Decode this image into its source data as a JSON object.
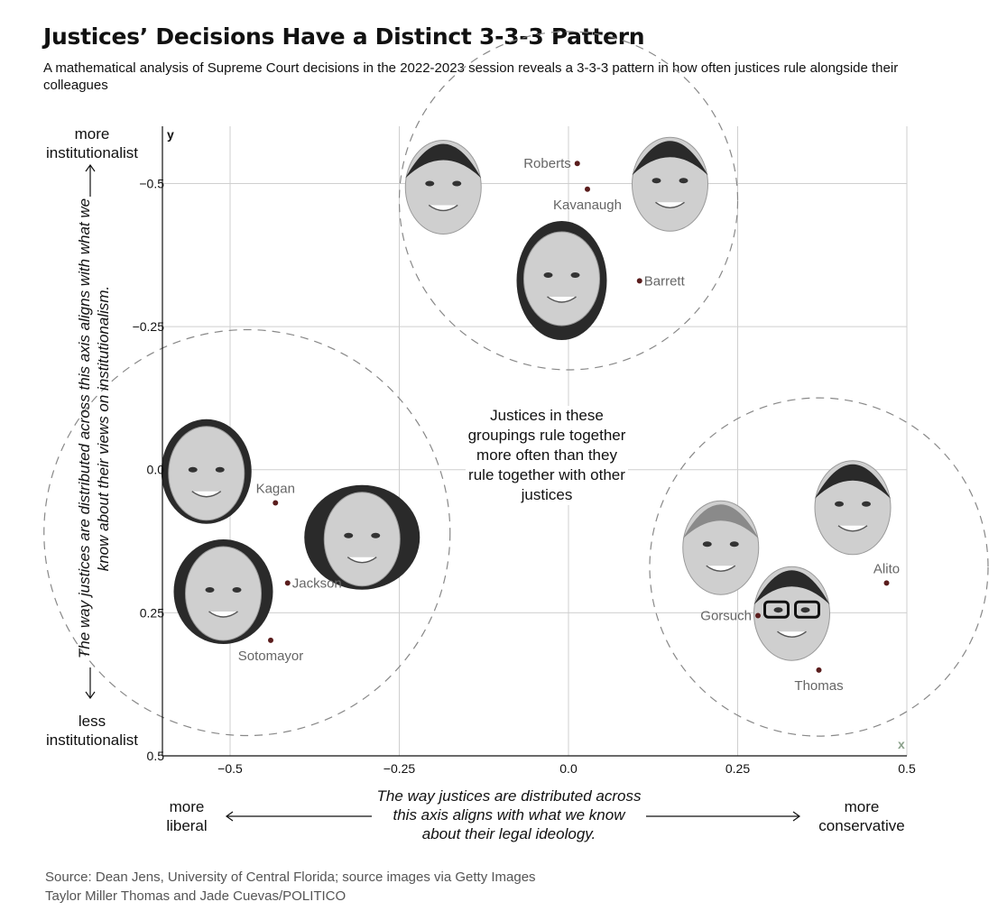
{
  "header": {
    "title": "Justices’ Decisions Have a Distinct 3-3-3 Pattern",
    "subtitle": "A mathematical analysis of Supreme Court decisions in the 2022-2023 session reveals a 3-3-3 pattern in how often justices rule alongside their colleagues"
  },
  "corners": {
    "top_left": "more\ninstitutionalist",
    "bottom_left": "less\ninstitutionalist",
    "left": "more\nliberal",
    "right": "more\nconservative"
  },
  "annotation": "Justices in these groupings rule together more often than they rule together with other justices",
  "footer": {
    "source": "Source: Dean Jens, University of Central Florida; source images via Getty Images",
    "credit": "Taylor Miller Thomas and Jade Cuevas/POLITICO"
  },
  "colors": {
    "point": "#5a1d1d",
    "label": "#666666",
    "grid": "#cfcfcf",
    "group_circle": "#888888",
    "face": "#cfcfcf",
    "hair": "#2a2a2a"
  },
  "chart_data": {
    "type": "scatter",
    "xlabel": "The way justices are distributed across this axis aligns with what we know about their legal ideology.",
    "ylabel": "The way justices are distributed across this axis aligns with what we know about their views on institutionalism.",
    "x_axis_letter": "x",
    "y_axis_letter": "y",
    "xlim": [
      -0.6,
      0.5
    ],
    "ylim": [
      -0.6,
      0.5
    ],
    "y_inverted": true,
    "x_ticks": [
      -0.5,
      -0.25,
      0.0,
      0.25,
      0.5
    ],
    "x_tick_labels": [
      "−0.5",
      "−0.25",
      "0.0",
      "0.25",
      "0.5"
    ],
    "y_ticks": [
      -0.5,
      -0.25,
      0.0,
      0.25,
      0.5
    ],
    "y_tick_labels": [
      "−0.5",
      "−0.25",
      "0.0",
      "0.25",
      "0.5"
    ],
    "grid": true,
    "points": [
      {
        "name": "Roberts",
        "x": 0.013,
        "y": -0.535,
        "label_side": "left"
      },
      {
        "name": "Kavanaugh",
        "x": 0.028,
        "y": -0.49,
        "label_side": "below"
      },
      {
        "name": "Barrett",
        "x": 0.105,
        "y": -0.33,
        "label_side": "right"
      },
      {
        "name": "Kagan",
        "x": -0.433,
        "y": 0.058,
        "label_side": "above"
      },
      {
        "name": "Jackson",
        "x": -0.415,
        "y": 0.198,
        "label_side": "right"
      },
      {
        "name": "Sotomayor",
        "x": -0.44,
        "y": 0.298,
        "label_side": "below"
      },
      {
        "name": "Gorsuch",
        "x": 0.28,
        "y": 0.255,
        "label_side": "left"
      },
      {
        "name": "Alito",
        "x": 0.47,
        "y": 0.198,
        "label_side": "above"
      },
      {
        "name": "Thomas",
        "x": 0.37,
        "y": 0.35,
        "label_side": "below"
      }
    ],
    "groups": [
      {
        "cx": 0.0,
        "cy": -0.47,
        "r": 0.25
      },
      {
        "cx": -0.475,
        "cy": 0.11,
        "r": 0.3
      },
      {
        "cx": 0.37,
        "cy": 0.17,
        "r": 0.25
      }
    ],
    "portraits": [
      {
        "name": "Roberts",
        "x": -0.185,
        "y": -0.5,
        "size": "large",
        "hair": "short"
      },
      {
        "name": "Kavanaugh",
        "x": 0.15,
        "y": -0.505,
        "size": "large",
        "hair": "short"
      },
      {
        "name": "Barrett",
        "x": -0.01,
        "y": -0.34,
        "size": "large",
        "hair": "long"
      },
      {
        "name": "Kagan",
        "x": -0.535,
        "y": 0.0,
        "size": "large",
        "hair": "bob"
      },
      {
        "name": "Jackson",
        "x": -0.305,
        "y": 0.115,
        "size": "large",
        "hair": "long-dark"
      },
      {
        "name": "Sotomayor",
        "x": -0.51,
        "y": 0.21,
        "size": "large",
        "hair": "curly"
      },
      {
        "name": "Gorsuch",
        "x": 0.225,
        "y": 0.13,
        "size": "large",
        "hair": "grey"
      },
      {
        "name": "Alito",
        "x": 0.42,
        "y": 0.06,
        "size": "large",
        "hair": "short"
      },
      {
        "name": "Thomas",
        "x": 0.33,
        "y": 0.245,
        "size": "large",
        "hair": "short-glasses"
      }
    ]
  }
}
